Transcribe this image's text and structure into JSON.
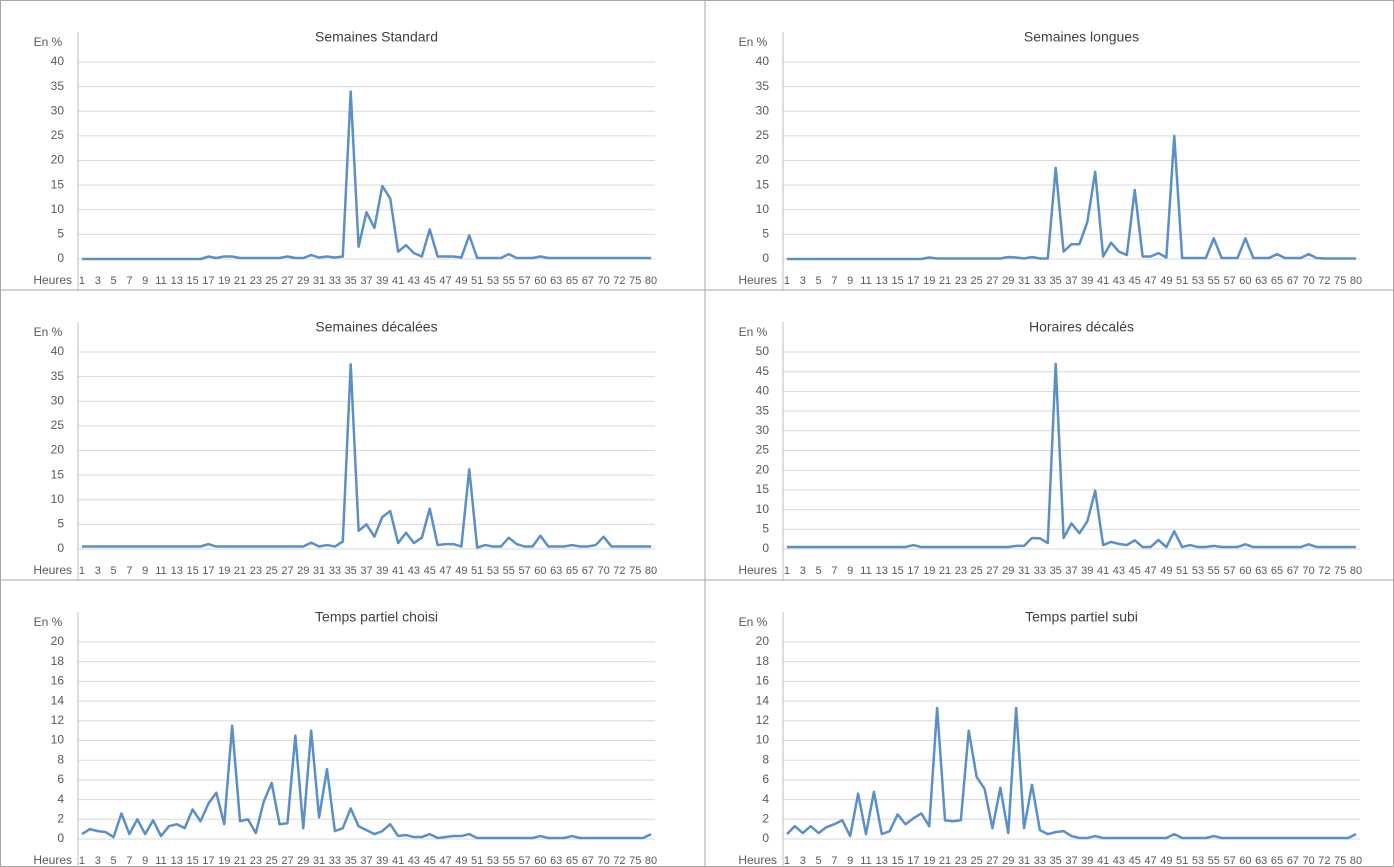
{
  "chart_data": [
    {
      "type": "line",
      "title": "Semaines Standard",
      "y_label": "En %",
      "x_label": "Heures",
      "color": "#5b8fc7",
      "grid": true,
      "categories": [
        1,
        null,
        3,
        null,
        5,
        null,
        7,
        null,
        9,
        null,
        11,
        null,
        13,
        null,
        15,
        null,
        17,
        null,
        19,
        null,
        21,
        null,
        23,
        null,
        25,
        null,
        27,
        null,
        29,
        null,
        31,
        null,
        33,
        null,
        35,
        null,
        37,
        null,
        39,
        null,
        41,
        null,
        43,
        null,
        45,
        null,
        47,
        null,
        49,
        null,
        51,
        null,
        53,
        null,
        55,
        null,
        57,
        null,
        60,
        null,
        63,
        null,
        65,
        null,
        67,
        null,
        70,
        null,
        72,
        null,
        75,
        null,
        80
      ],
      "values": [
        0,
        0,
        0,
        0,
        0,
        0,
        0,
        0,
        0,
        0,
        0,
        0,
        0,
        0,
        0,
        0,
        0.5,
        0.2,
        0.5,
        0.5,
        0.2,
        0.2,
        0.2,
        0.2,
        0.2,
        0.2,
        0.5,
        0.2,
        0.2,
        0.8,
        0.3,
        0.5,
        0.3,
        0.5,
        34,
        2.5,
        9.5,
        6.3,
        14.8,
        12.3,
        1.5,
        2.8,
        1.2,
        0.5,
        6,
        0.5,
        0.5,
        0.5,
        0.3,
        4.8,
        0.2,
        0.2,
        0.2,
        0.2,
        1,
        0.2,
        0.2,
        0.2,
        0.5,
        0.2,
        0.2,
        0.2,
        0.2,
        0.2,
        0.2,
        0.2,
        0.2,
        0.2,
        0.2,
        0.2,
        0.2,
        0.2,
        0.2
      ],
      "ylim": [
        0,
        40
      ],
      "yticks": [
        0,
        5,
        10,
        15,
        20,
        25,
        30,
        35,
        40
      ]
    },
    {
      "type": "line",
      "title": "Semaines longues",
      "y_label": "En %",
      "x_label": "Heures",
      "color": "#5b8fc7",
      "grid": true,
      "categories": [
        1,
        null,
        3,
        null,
        5,
        null,
        7,
        null,
        9,
        null,
        11,
        null,
        13,
        null,
        15,
        null,
        17,
        null,
        19,
        null,
        21,
        null,
        23,
        null,
        25,
        null,
        27,
        null,
        29,
        null,
        31,
        null,
        33,
        null,
        35,
        null,
        37,
        null,
        39,
        null,
        41,
        null,
        43,
        null,
        45,
        null,
        47,
        null,
        49,
        null,
        51,
        null,
        53,
        null,
        55,
        null,
        57,
        null,
        60,
        null,
        63,
        null,
        65,
        null,
        67,
        null,
        70,
        null,
        72,
        null,
        75,
        null,
        80
      ],
      "values": [
        0,
        0,
        0,
        0,
        0,
        0,
        0,
        0,
        0,
        0,
        0,
        0,
        0,
        0,
        0,
        0,
        0,
        0,
        0.3,
        0.1,
        0.1,
        0.1,
        0.1,
        0.1,
        0.1,
        0.1,
        0.1,
        0.1,
        0.4,
        0.3,
        0.1,
        0.4,
        0.1,
        0.1,
        18.5,
        1.5,
        3,
        3,
        7.5,
        17.7,
        0.5,
        3.3,
        1.5,
        0.8,
        14,
        0.5,
        0.5,
        1.2,
        0.3,
        25,
        0.2,
        0.2,
        0.2,
        0.2,
        4.2,
        0.2,
        0.2,
        0.2,
        4.2,
        0.2,
        0.2,
        0.2,
        1,
        0.2,
        0.2,
        0.2,
        1,
        0.2,
        0.1,
        0.1,
        0.1,
        0.1,
        0.1
      ],
      "ylim": [
        0,
        40
      ],
      "yticks": [
        0,
        5,
        10,
        15,
        20,
        25,
        30,
        35,
        40
      ]
    },
    {
      "type": "line",
      "title": "Semaines décalées",
      "y_label": "En %",
      "x_label": "Heures",
      "color": "#5b8fc7",
      "grid": true,
      "categories": [
        1,
        null,
        3,
        null,
        5,
        null,
        7,
        null,
        9,
        null,
        11,
        null,
        13,
        null,
        15,
        null,
        17,
        null,
        19,
        null,
        21,
        null,
        23,
        null,
        25,
        null,
        27,
        null,
        29,
        null,
        31,
        null,
        33,
        null,
        35,
        null,
        37,
        null,
        39,
        null,
        41,
        null,
        43,
        null,
        45,
        null,
        47,
        null,
        49,
        null,
        51,
        null,
        53,
        null,
        55,
        null,
        57,
        null,
        60,
        null,
        63,
        null,
        65,
        null,
        67,
        null,
        70,
        null,
        72,
        null,
        75,
        null,
        80
      ],
      "values": [
        0.5,
        0.5,
        0.5,
        0.5,
        0.5,
        0.5,
        0.5,
        0.5,
        0.5,
        0.5,
        0.5,
        0.5,
        0.5,
        0.5,
        0.5,
        0.5,
        1,
        0.5,
        0.5,
        0.5,
        0.5,
        0.5,
        0.5,
        0.5,
        0.5,
        0.5,
        0.5,
        0.5,
        0.5,
        1.3,
        0.5,
        0.8,
        0.5,
        1.5,
        37.5,
        3.7,
        5,
        2.5,
        6.5,
        7.7,
        1.2,
        3.3,
        1.2,
        2.3,
        8.2,
        0.8,
        1,
        1,
        0.5,
        16.2,
        0.3,
        0.8,
        0.5,
        0.5,
        2.3,
        1,
        0.5,
        0.5,
        2.7,
        0.5,
        0.5,
        0.5,
        0.8,
        0.5,
        0.5,
        0.8,
        2.5,
        0.5,
        0.5,
        0.5,
        0.5,
        0.5,
        0.5
      ],
      "ylim": [
        0,
        40
      ],
      "yticks": [
        0,
        5,
        10,
        15,
        20,
        25,
        30,
        35,
        40
      ]
    },
    {
      "type": "line",
      "title": "Horaires décalés",
      "y_label": "En %",
      "x_label": "Heures",
      "color": "#5b8fc7",
      "grid": true,
      "categories": [
        1,
        null,
        3,
        null,
        5,
        null,
        7,
        null,
        9,
        null,
        11,
        null,
        13,
        null,
        15,
        null,
        17,
        null,
        19,
        null,
        21,
        null,
        23,
        null,
        25,
        null,
        27,
        null,
        29,
        null,
        31,
        null,
        33,
        null,
        35,
        null,
        37,
        null,
        39,
        null,
        41,
        null,
        43,
        null,
        45,
        null,
        47,
        null,
        49,
        null,
        51,
        null,
        53,
        null,
        55,
        null,
        57,
        null,
        60,
        null,
        63,
        null,
        65,
        null,
        67,
        null,
        70,
        null,
        72,
        null,
        75,
        null,
        80
      ],
      "values": [
        0.5,
        0.5,
        0.5,
        0.5,
        0.5,
        0.5,
        0.5,
        0.5,
        0.5,
        0.5,
        0.5,
        0.5,
        0.5,
        0.5,
        0.5,
        0.5,
        1,
        0.5,
        0.5,
        0.5,
        0.5,
        0.5,
        0.5,
        0.5,
        0.5,
        0.5,
        0.5,
        0.5,
        0.5,
        0.8,
        0.8,
        2.8,
        2.7,
        1.5,
        47,
        2.8,
        6.5,
        4,
        7,
        14.8,
        1,
        1.8,
        1.3,
        1,
        2.2,
        0.5,
        0.5,
        2.3,
        0.5,
        4.5,
        0.5,
        1,
        0.5,
        0.5,
        0.8,
        0.5,
        0.5,
        0.5,
        1.2,
        0.5,
        0.5,
        0.5,
        0.5,
        0.5,
        0.5,
        0.5,
        1.2,
        0.5,
        0.5,
        0.5,
        0.5,
        0.5,
        0.5
      ],
      "ylim": [
        0,
        50
      ],
      "yticks": [
        0,
        5,
        10,
        15,
        20,
        25,
        30,
        35,
        40,
        45,
        50
      ]
    },
    {
      "type": "line",
      "title": "Temps partiel choisi",
      "y_label": "En %",
      "x_label": "Heures",
      "color": "#5b8fc7",
      "grid": true,
      "categories": [
        1,
        null,
        3,
        null,
        5,
        null,
        7,
        null,
        9,
        null,
        11,
        null,
        13,
        null,
        15,
        null,
        17,
        null,
        19,
        null,
        21,
        null,
        23,
        null,
        25,
        null,
        27,
        null,
        29,
        null,
        31,
        null,
        33,
        null,
        35,
        null,
        37,
        null,
        39,
        null,
        41,
        null,
        43,
        null,
        45,
        null,
        47,
        null,
        49,
        null,
        51,
        null,
        53,
        null,
        55,
        null,
        57,
        null,
        60,
        null,
        63,
        null,
        65,
        null,
        67,
        null,
        70,
        null,
        72,
        null,
        75,
        null,
        80
      ],
      "values": [
        0.5,
        1,
        0.8,
        0.7,
        0.2,
        2.6,
        0.5,
        2,
        0.5,
        1.9,
        0.3,
        1.3,
        1.5,
        1.1,
        3,
        1.8,
        3.6,
        4.7,
        1.5,
        11.5,
        1.8,
        2,
        0.6,
        3.8,
        5.7,
        1.5,
        1.6,
        10.5,
        1.1,
        11,
        2.2,
        7.1,
        0.8,
        1.1,
        3.1,
        1.3,
        0.9,
        0.5,
        0.8,
        1.5,
        0.3,
        0.4,
        0.2,
        0.2,
        0.5,
        0.1,
        0.2,
        0.3,
        0.3,
        0.5,
        0.1,
        0.1,
        0.1,
        0.1,
        0.1,
        0.1,
        0.1,
        0.1,
        0.3,
        0.1,
        0.1,
        0.1,
        0.3,
        0.1,
        0.1,
        0.1,
        0.1,
        0.1,
        0.1,
        0.1,
        0.1,
        0.1,
        0.5
      ],
      "ylim": [
        0,
        20
      ],
      "yticks": [
        0,
        2,
        4,
        6,
        8,
        10,
        12,
        14,
        16,
        18,
        20
      ]
    },
    {
      "type": "line",
      "title": "Temps partiel subi",
      "y_label": "En %",
      "x_label": "Heures",
      "color": "#5b8fc7",
      "grid": true,
      "categories": [
        1,
        null,
        3,
        null,
        5,
        null,
        7,
        null,
        9,
        null,
        11,
        null,
        13,
        null,
        15,
        null,
        17,
        null,
        19,
        null,
        21,
        null,
        23,
        null,
        25,
        null,
        27,
        null,
        29,
        null,
        31,
        null,
        33,
        null,
        35,
        null,
        37,
        null,
        39,
        null,
        41,
        null,
        43,
        null,
        45,
        null,
        47,
        null,
        49,
        null,
        51,
        null,
        53,
        null,
        55,
        null,
        57,
        null,
        60,
        null,
        63,
        null,
        65,
        null,
        67,
        null,
        70,
        null,
        72,
        null,
        75,
        null,
        80
      ],
      "values": [
        0.5,
        1.3,
        0.6,
        1.3,
        0.6,
        1.2,
        1.5,
        1.9,
        0.3,
        4.6,
        0.5,
        4.8,
        0.5,
        0.8,
        2.5,
        1.5,
        2.1,
        2.6,
        1.3,
        13.3,
        1.9,
        1.8,
        1.9,
        11,
        6.3,
        5.1,
        1.1,
        5.2,
        0.6,
        13.3,
        1.1,
        5.5,
        0.9,
        0.5,
        0.7,
        0.8,
        0.3,
        0.1,
        0.1,
        0.3,
        0.1,
        0.1,
        0.1,
        0.1,
        0.1,
        0.1,
        0.1,
        0.1,
        0.1,
        0.5,
        0.1,
        0.1,
        0.1,
        0.1,
        0.3,
        0.1,
        0.1,
        0.1,
        0.1,
        0.1,
        0.1,
        0.1,
        0.1,
        0.1,
        0.1,
        0.1,
        0.1,
        0.1,
        0.1,
        0.1,
        0.1,
        0.1,
        0.5
      ],
      "ylim": [
        0,
        20
      ],
      "yticks": [
        0,
        2,
        4,
        6,
        8,
        10,
        12,
        14,
        16,
        18,
        20
      ]
    }
  ]
}
